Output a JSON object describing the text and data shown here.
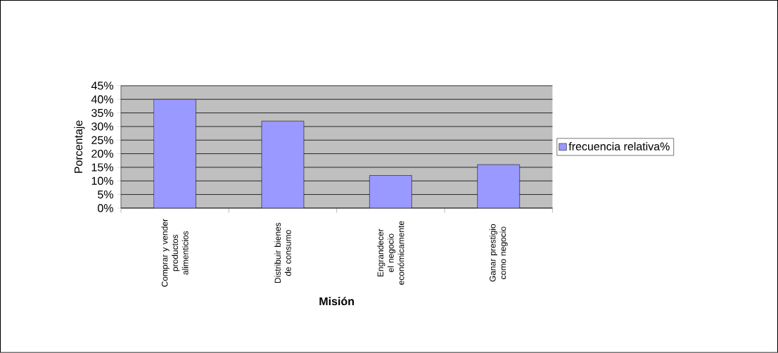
{
  "chart_data": {
    "type": "bar",
    "xlabel": "Misión",
    "ylabel": "Porcentaje",
    "categories": [
      "Comprar y vender productos alimenticios",
      "Distribuir bienes de consumo",
      "Engrandecer el negocio económicamente",
      "Ganar prestigio como negocio"
    ],
    "series": [
      {
        "name": "frecuencia relativa%",
        "color": "#9999ff",
        "values": [
          40,
          32,
          12,
          16
        ]
      }
    ],
    "ylim": [
      0,
      45
    ],
    "yticks": [
      {
        "value": 0,
        "label": "0%"
      },
      {
        "value": 5,
        "label": "5%"
      },
      {
        "value": 10,
        "label": "10%"
      },
      {
        "value": 15,
        "label": "15%"
      },
      {
        "value": 20,
        "label": "20%"
      },
      {
        "value": 25,
        "label": "25%"
      },
      {
        "value": 30,
        "label": "30%"
      },
      {
        "value": 35,
        "label": "35%"
      },
      {
        "value": 40,
        "label": "40%"
      },
      {
        "value": 45,
        "label": "45%"
      }
    ],
    "grid": "y",
    "legend": "right"
  }
}
